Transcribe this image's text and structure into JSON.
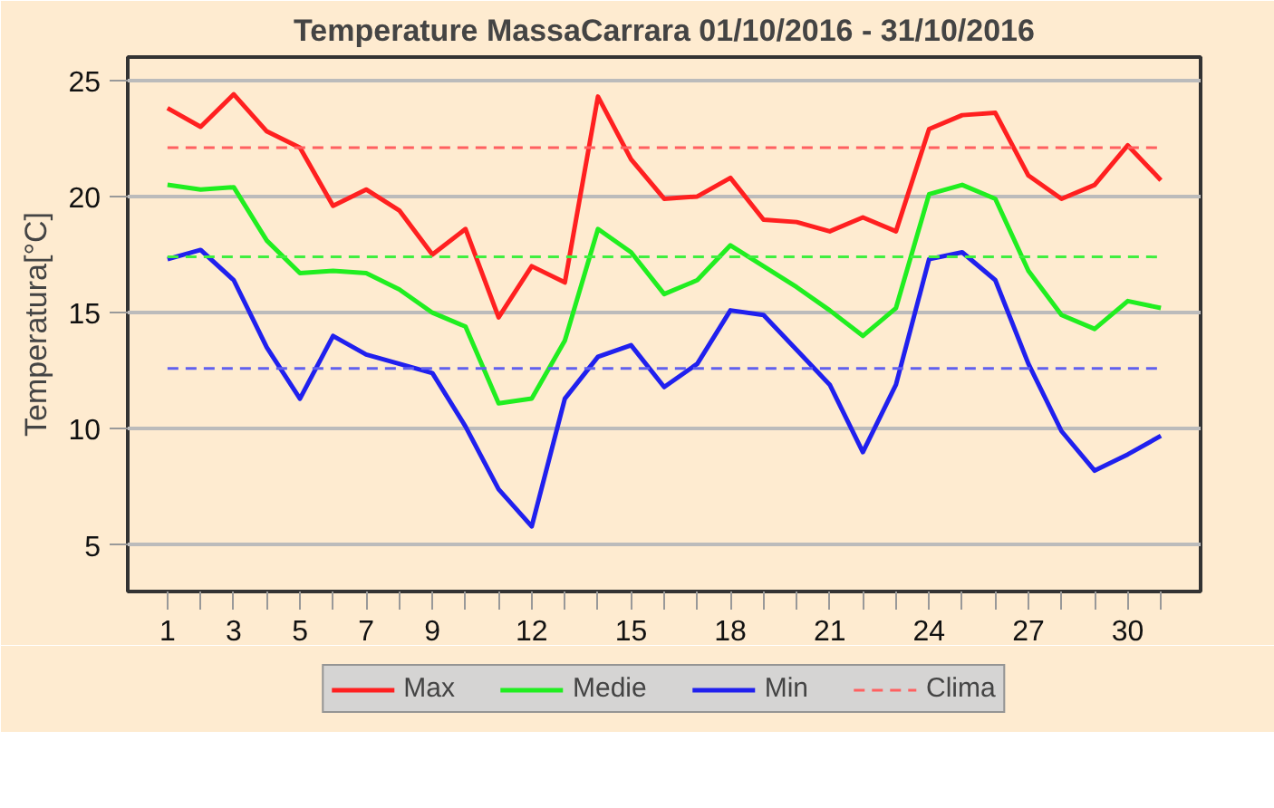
{
  "chart_data": {
    "type": "line",
    "title": "Temperature MassaCarrara 01/10/2016 - 31/10/2016",
    "ylabel": "Temperatura[°C]",
    "x": [
      1,
      2,
      3,
      4,
      5,
      6,
      7,
      8,
      9,
      10,
      11,
      12,
      13,
      14,
      15,
      16,
      17,
      18,
      19,
      20,
      21,
      22,
      23,
      24,
      25,
      26,
      27,
      28,
      29,
      30,
      31
    ],
    "series": [
      {
        "name": "Max",
        "color": "#ff2020",
        "values": [
          23.8,
          23.0,
          24.4,
          22.8,
          22.1,
          19.6,
          20.3,
          19.4,
          17.5,
          18.6,
          14.8,
          17.0,
          16.3,
          24.3,
          21.6,
          19.9,
          20.0,
          20.8,
          19.0,
          18.9,
          18.5,
          19.1,
          18.5,
          22.9,
          23.5,
          23.6,
          20.9,
          19.9,
          20.5,
          22.2,
          20.7
        ]
      },
      {
        "name": "Medie",
        "color": "#20ee20",
        "values": [
          20.5,
          20.3,
          20.4,
          18.1,
          16.7,
          16.8,
          16.7,
          16.0,
          15.0,
          14.4,
          11.1,
          11.3,
          13.8,
          18.6,
          17.6,
          15.8,
          16.4,
          17.9,
          17.0,
          16.1,
          15.1,
          14.0,
          15.2,
          20.1,
          20.5,
          19.9,
          16.8,
          14.9,
          14.3,
          15.5,
          15.2
        ]
      },
      {
        "name": "Min",
        "color": "#2020ee",
        "values": [
          17.3,
          17.7,
          16.4,
          13.5,
          11.3,
          14.0,
          13.2,
          12.8,
          12.4,
          10.1,
          7.4,
          5.8,
          11.3,
          13.1,
          13.6,
          11.8,
          12.8,
          15.1,
          14.9,
          13.4,
          11.9,
          9.0,
          11.9,
          17.3,
          17.6,
          16.4,
          12.8,
          9.9,
          8.2,
          8.9,
          9.7
        ]
      }
    ],
    "ref_lines": [
      {
        "axis": "y",
        "value": 22.1,
        "label": "Clima",
        "color": "#ff6060",
        "line_style": "dashed"
      },
      {
        "axis": "y",
        "value": 17.4,
        "color": "#40ee40",
        "line_style": "dashed"
      },
      {
        "axis": "y",
        "value": 12.6,
        "color": "#6060ee",
        "line_style": "dashed"
      }
    ],
    "xlim": [
      -0.2,
      32.2
    ],
    "xticks": [
      1,
      3,
      5,
      7,
      9,
      12,
      15,
      18,
      21,
      24,
      27,
      30
    ],
    "ylim": [
      3,
      26
    ],
    "yticks": [
      5,
      10,
      15,
      20,
      25
    ],
    "grid": "y",
    "legend": "bottom",
    "line_style": "solid"
  }
}
